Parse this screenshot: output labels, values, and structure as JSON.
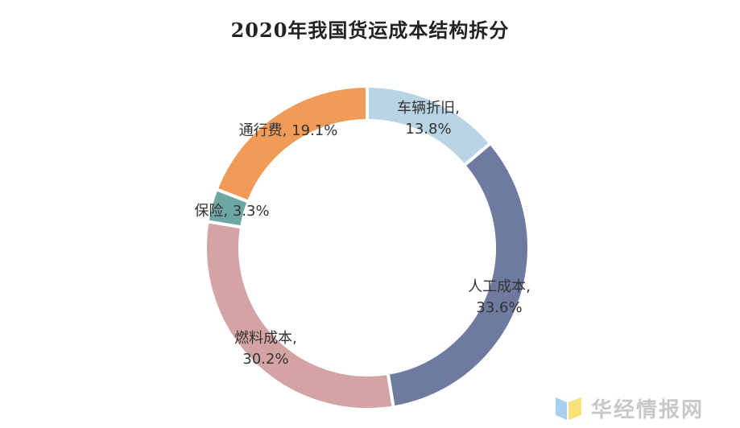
{
  "chart_data": {
    "type": "pie",
    "title": "2020年我国货运成本结构拆分",
    "donut": true,
    "slices": [
      {
        "label": "车辆折旧",
        "value": 13.8,
        "display": "13.8%",
        "color": "#b8d4e5"
      },
      {
        "label": "人工成本",
        "value": 33.6,
        "display": "33.6%",
        "color": "#6e7aa0"
      },
      {
        "label": "燃料成本",
        "value": 30.2,
        "display": "30.2%",
        "color": "#d4a4a4"
      },
      {
        "label": "保险",
        "value": 3.3,
        "display": "3.3%",
        "color": "#6da7a4"
      },
      {
        "label": "通行费",
        "value": 19.1,
        "display": "19.1%",
        "color": "#f09c58"
      }
    ]
  },
  "watermark": {
    "text": "华经情报网"
  }
}
